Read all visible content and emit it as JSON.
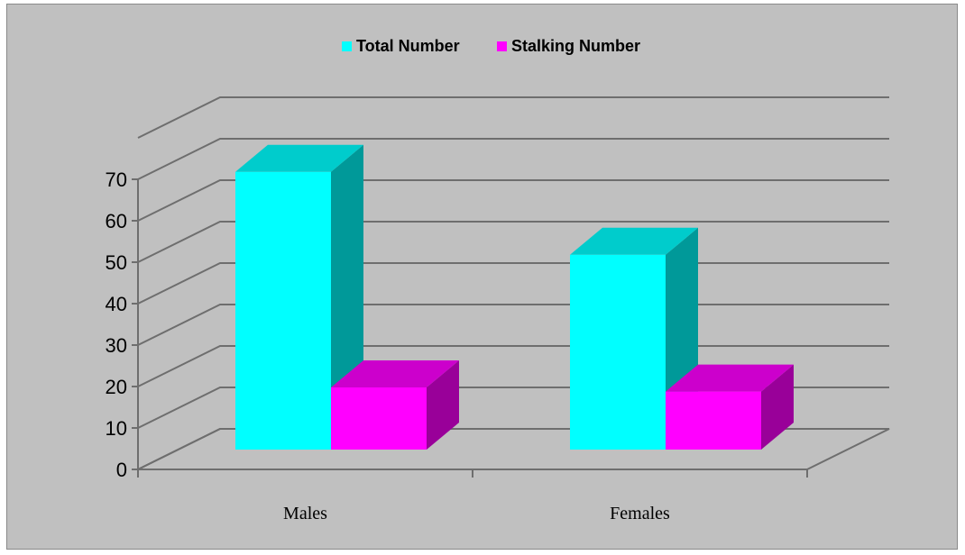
{
  "chart_data": {
    "type": "bar",
    "style": "3d-clustered-column",
    "categories": [
      "Males",
      "Females"
    ],
    "series": [
      {
        "name": "Total Number",
        "values": [
          67,
          47
        ],
        "color": "#00ffff",
        "side_color": "#009999",
        "top_color": "#00cccc"
      },
      {
        "name": "Stalking Number",
        "values": [
          15,
          14
        ],
        "color": "#ff00ff",
        "side_color": "#990099",
        "top_color": "#cc00cc"
      }
    ],
    "ylim": [
      0,
      70
    ],
    "yticks": [
      "0",
      "10",
      "20",
      "30",
      "40",
      "50",
      "60",
      "70"
    ],
    "grid": true,
    "legend_position": "top-center",
    "background_color": "#c0c0c0"
  }
}
